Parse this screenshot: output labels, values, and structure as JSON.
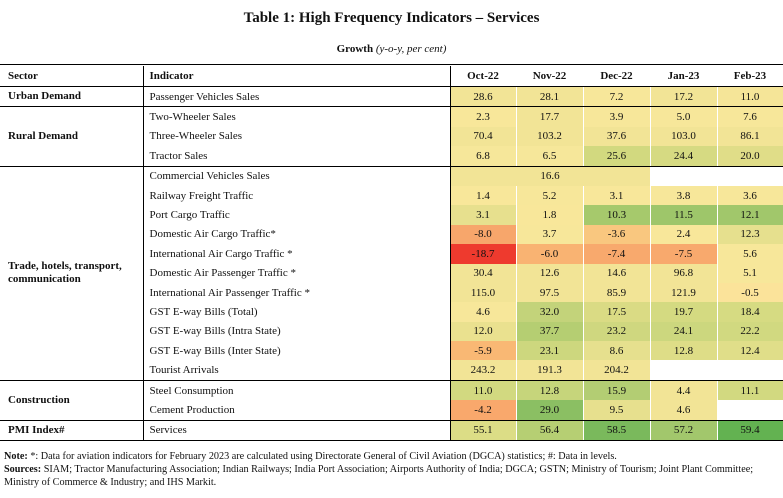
{
  "title": "Table 1: High Frequency Indicators – Services",
  "subtitle": {
    "main": "Growth",
    "paren": "(y-o-y, per cent)"
  },
  "headers": {
    "sector": "Sector",
    "indicator": "Indicator",
    "months": [
      "Oct-22",
      "Nov-22",
      "Dec-22",
      "Jan-23",
      "Feb-23"
    ]
  },
  "groups": [
    {
      "sector": "Urban Demand",
      "rows": [
        {
          "indicator": "Passenger Vehicles Sales",
          "values": [
            "28.6",
            "28.1",
            "7.2",
            "17.2",
            "11.0"
          ],
          "colors": [
            "#f2e496",
            "#f2e496",
            "#f7e79a",
            "#f2e496",
            "#f5e598"
          ]
        }
      ]
    },
    {
      "sector": "Rural Demand",
      "rows": [
        {
          "indicator": "Two-Wheeler Sales",
          "values": [
            "2.3",
            "17.7",
            "3.9",
            "5.0",
            "7.6"
          ],
          "colors": [
            "#f8e79a",
            "#f2e496",
            "#f7e79a",
            "#f7e79a",
            "#f7e79a"
          ]
        },
        {
          "indicator": "Three-Wheeler Sales",
          "values": [
            "70.4",
            "103.2",
            "37.6",
            "103.0",
            "86.1"
          ],
          "colors": [
            "#f2e496",
            "#f2e496",
            "#f2e496",
            "#f2e496",
            "#f2e496"
          ]
        },
        {
          "indicator": "Tractor Sales",
          "values": [
            "6.8",
            "6.5",
            "25.6",
            "24.4",
            "20.0"
          ],
          "colors": [
            "#f6e79a",
            "#f6e79a",
            "#d2d97f",
            "#d6da82",
            "#e0dd88"
          ]
        }
      ]
    },
    {
      "sector": "Trade, hotels, transport, communication",
      "rows": [
        {
          "indicator": "Commercial Vehicles Sales",
          "values": [
            "",
            "16.6",
            "",
            "",
            ""
          ],
          "colors": [
            "#f2e496",
            "#f2e496",
            "#f2e496",
            "#ffffff",
            "#ffffff"
          ],
          "merged": true
        },
        {
          "indicator": "Railway Freight Traffic",
          "values": [
            "1.4",
            "5.2",
            "3.1",
            "3.8",
            "3.6"
          ],
          "colors": [
            "#f8e79a",
            "#f7e79a",
            "#f8e79a",
            "#f7e79a",
            "#f7e79a"
          ]
        },
        {
          "indicator": "Port Cargo Traffic",
          "values": [
            "3.1",
            "1.8",
            "10.3",
            "11.5",
            "12.1"
          ],
          "colors": [
            "#e7e08e",
            "#f8e79a",
            "#a6c96c",
            "#9ec66a",
            "#a1c76b"
          ]
        },
        {
          "indicator": "Domestic Air Cargo Traffic*",
          "values": [
            "-8.0",
            "3.7",
            "-3.6",
            "2.4",
            "12.3"
          ],
          "colors": [
            "#f7a66b",
            "#f7e79a",
            "#f9c77f",
            "#f8e79a",
            "#e6e08e"
          ]
        },
        {
          "indicator": "International Air Cargo Traffic *",
          "values": [
            "-18.7",
            "-6.0",
            "-7.4",
            "-7.5",
            "5.6"
          ],
          "colors": [
            "#ee3a2e",
            "#f9b372",
            "#f8a96d",
            "#f8a96d",
            "#f7e79a"
          ]
        },
        {
          "indicator": "Domestic Air Passenger Traffic *",
          "values": [
            "30.4",
            "12.6",
            "14.6",
            "96.8",
            "5.1"
          ],
          "colors": [
            "#f2e496",
            "#f2e496",
            "#f2e496",
            "#f2e496",
            "#f7e79a"
          ]
        },
        {
          "indicator": "International Air Passenger Traffic *",
          "values": [
            "115.0",
            "97.5",
            "85.9",
            "121.9",
            "-0.5"
          ],
          "colors": [
            "#f2e496",
            "#f2e496",
            "#f2e496",
            "#f2e496",
            "#fbe39a"
          ]
        },
        {
          "indicator": "GST E-way Bills (Total)",
          "values": [
            "4.6",
            "32.0",
            "17.5",
            "19.7",
            "18.4"
          ],
          "colors": [
            "#f7e79a",
            "#c3d37a",
            "#dadb84",
            "#d4da81",
            "#d6db82"
          ]
        },
        {
          "indicator": "GST E-way Bills (Intra State)",
          "values": [
            "12.0",
            "37.7",
            "23.2",
            "24.1",
            "22.2"
          ],
          "colors": [
            "#eae18f",
            "#b5ce72",
            "#cfd77f",
            "#ccd77e",
            "#d1d980"
          ]
        },
        {
          "indicator": "GST E-way Bills (Inter State)",
          "values": [
            "-5.9",
            "23.1",
            "8.6",
            "12.8",
            "12.4"
          ],
          "colors": [
            "#f9b874",
            "#cdd77e",
            "#e6e08e",
            "#dedd87",
            "#e0de89"
          ]
        },
        {
          "indicator": "Tourist Arrivals",
          "values": [
            "243.2",
            "191.3",
            "204.2",
            "",
            ""
          ],
          "colors": [
            "#f2e496",
            "#f2e496",
            "#f2e496",
            "#ffffff",
            "#ffffff"
          ]
        }
      ]
    },
    {
      "sector": "Construction",
      "rows": [
        {
          "indicator": "Steel Consumption",
          "values": [
            "11.0",
            "12.8",
            "15.9",
            "4.4",
            "11.1"
          ],
          "colors": [
            "#d2d980",
            "#c6d57b",
            "#b3cd73",
            "#f2e496",
            "#d2d980"
          ]
        },
        {
          "indicator": "Cement Production",
          "values": [
            "-4.2",
            "29.0",
            "9.5",
            "4.6",
            ""
          ],
          "colors": [
            "#f9a86c",
            "#8bbf63",
            "#e7e08e",
            "#f2e496",
            "#ffffff"
          ]
        }
      ]
    },
    {
      "sector": "PMI Index#",
      "rows": [
        {
          "indicator": "Services",
          "values": [
            "55.1",
            "56.4",
            "58.5",
            "57.2",
            "59.4"
          ],
          "colors": [
            "#dcdd86",
            "#b6cf73",
            "#7ab95c",
            "#a2c76c",
            "#63b251"
          ]
        }
      ]
    }
  ],
  "notes": {
    "note_label": "Note:",
    "note_text": " *: Data for aviation indicators for February 2023 are calculated using Directorate General of Civil Aviation (DGCA) statistics; #: Data in levels.",
    "sources_label": "Sources:",
    "sources_text": " SIAM; Tractor Manufacturing Association; Indian Railways; India Port Association; Airports Authority of India; DGCA; GSTN; Ministry of Tourism; Joint Plant Committee; Ministry of Commerce & Industry; and IHS Markit."
  }
}
